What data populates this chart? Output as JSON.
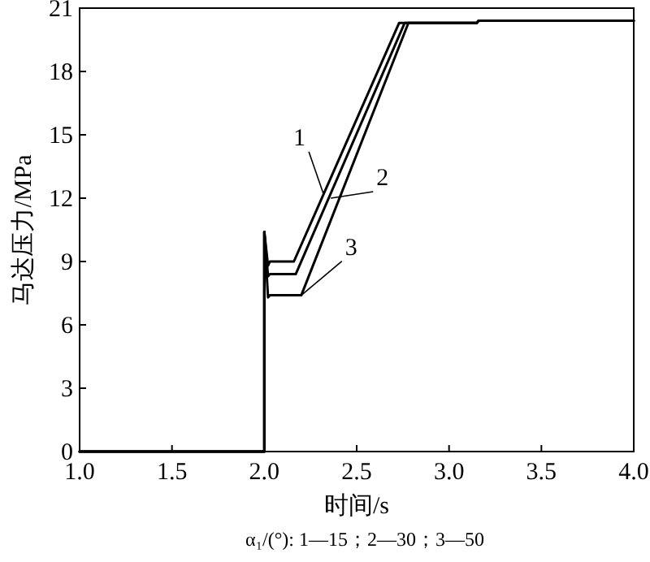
{
  "chart_data": {
    "type": "line",
    "xlabel": "时间/s",
    "ylabel": "马达压力/MPa",
    "xlim": [
      1.0,
      4.0
    ],
    "ylim": [
      0,
      21
    ],
    "xticks": [
      {
        "value": 1.0,
        "label": "1.0"
      },
      {
        "value": 1.5,
        "label": "1.5"
      },
      {
        "value": 2.0,
        "label": "2.0"
      },
      {
        "value": 2.5,
        "label": "2.5"
      },
      {
        "value": 3.0,
        "label": "3.0"
      },
      {
        "value": 3.5,
        "label": "3.5"
      },
      {
        "value": 4.0,
        "label": "4.0"
      }
    ],
    "yticks": [
      0,
      3,
      6,
      9,
      12,
      15,
      18,
      21
    ],
    "grid": false,
    "marker": "none",
    "line_style": "solid",
    "series": [
      {
        "color": "#000000",
        "x": [
          1.0,
          2.0,
          2.0,
          2.02,
          2.03,
          2.16,
          2.73,
          3.15,
          3.16,
          4.0
        ],
        "values": [
          0,
          0,
          10.4,
          8.8,
          9.0,
          9.0,
          20.3,
          20.3,
          20.4,
          20.4
        ]
      },
      {
        "color": "#000000",
        "x": [
          1.0,
          2.0,
          2.0,
          2.02,
          2.03,
          2.17,
          2.76,
          3.15,
          3.16,
          4.0
        ],
        "values": [
          0,
          0,
          10.4,
          8.3,
          8.4,
          8.4,
          20.3,
          20.3,
          20.4,
          20.4
        ]
      },
      {
        "color": "#000000",
        "x": [
          1.0,
          2.0,
          2.0,
          2.02,
          2.03,
          2.2,
          2.78,
          3.15,
          3.16,
          4.0
        ],
        "values": [
          0,
          0,
          10.4,
          7.3,
          7.4,
          7.4,
          20.3,
          20.3,
          20.4,
          20.4
        ]
      }
    ],
    "annotations": [
      {
        "text": "1",
        "x": 2.32,
        "y": 12.2
      },
      {
        "text": "2",
        "x": 2.36,
        "y": 12.0
      },
      {
        "text": "3",
        "x": 2.2,
        "y": 7.4
      },
      "α₁/(°): 1—15；2—30；3—50"
    ]
  }
}
